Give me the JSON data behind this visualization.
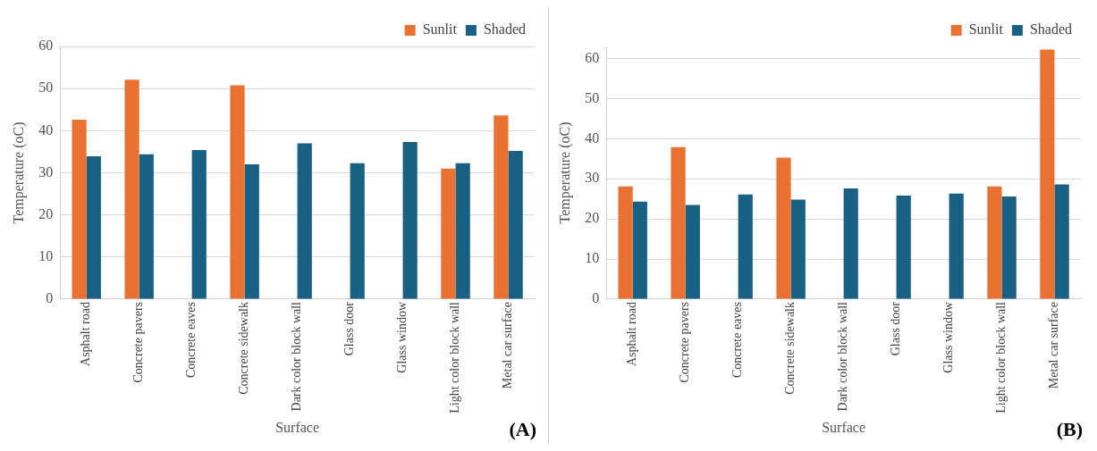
{
  "chart_data": [
    {
      "type": "bar",
      "categories": [
        "Asphalt road",
        "Concrete pavers",
        "Concrete eaves",
        "Concrete sidewalk",
        "Dark color block wall",
        "Glass door",
        "Glass window",
        "Light color block wall",
        "Metal car surface"
      ],
      "series": [
        {
          "name": "Sunlit",
          "color": "#e97132",
          "values": [
            42.6,
            52.1,
            null,
            50.8,
            null,
            null,
            null,
            31,
            43.6
          ]
        },
        {
          "name": "Shaded",
          "color": "#196184",
          "values": [
            33.9,
            34.4,
            35.4,
            32,
            37,
            32.3,
            37.3,
            32.3,
            35.2
          ]
        }
      ],
      "xlabel": "Surface",
      "ylabel": "Temperature (oC)",
      "ylim": [
        0,
        60
      ],
      "yticks": [
        0,
        10,
        20,
        30,
        40,
        50,
        60
      ],
      "grid": "y",
      "legend": "top right",
      "annotations": [
        "(A)"
      ]
    },
    {
      "type": "bar",
      "categories": [
        "Asphalt road",
        "Concrete pavers",
        "Concrete eaves",
        "Concrete sidewalk",
        "Dark color block wall",
        "Glass door",
        "Glass window",
        "Light color block wall",
        "Metal car surface"
      ],
      "series": [
        {
          "name": "Sunlit",
          "color": "#e97132",
          "values": [
            28.1,
            37.9,
            null,
            35.3,
            null,
            null,
            null,
            28.1,
            62.2
          ]
        },
        {
          "name": "Shaded",
          "color": "#196184",
          "values": [
            24.3,
            23.5,
            26.1,
            24.8,
            27.6,
            25.8,
            26.3,
            25.6,
            28.6
          ]
        }
      ],
      "xlabel": "Surface",
      "ylabel": "Temperature (oC)",
      "ylim": [
        0,
        63
      ],
      "yticks": [
        0,
        10,
        20,
        30,
        40,
        50,
        60
      ],
      "grid": "y",
      "legend": "top right",
      "annotations": [
        "(B)"
      ]
    }
  ]
}
